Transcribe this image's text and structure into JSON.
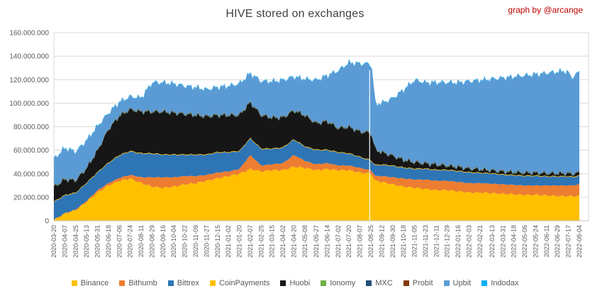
{
  "credit": "graph by @arcange",
  "colors": {
    "background": "#FFFFFF",
    "grid": "#D9D9D9",
    "axis_line": "#C6C6C6",
    "axis_text": "#595959",
    "title_text": "#404040",
    "credit_text": "#C00000",
    "gap_line": "#FFFFFF"
  },
  "chart_data": {
    "type": "area",
    "stacked": true,
    "title": "HIVE stored on exchanges",
    "xlabel": "",
    "ylabel": "",
    "grid": "horizontal",
    "legend_position": "bottom",
    "y_axis": {
      "min": 0,
      "max": 160000000,
      "step": 20000000,
      "tick_format": "dot-thousands"
    },
    "x_tick_labels": [
      "2020-03-20",
      "2020-04-07",
      "2020-04-25",
      "2020-05-13",
      "2020-05-31",
      "2020-06-18",
      "2020-07-06",
      "2020-07-24",
      "2020-08-11",
      "2020-08-29",
      "2020-09-16",
      "2020-10-04",
      "2020-10-22",
      "2020-11-09",
      "2020-11-27",
      "2020-12-15",
      "2021-01-02",
      "2021-01-20",
      "2021-02-07",
      "2021-02-25",
      "2021-03-15",
      "2021-04-02",
      "2021-04-20",
      "2021-05-08",
      "2021-05-27",
      "2021-06-14",
      "2021-07-02",
      "2021-07-20",
      "2021-08-07",
      "2021-08-25",
      "2021-09-12",
      "2021-09-30",
      "2021-10-18",
      "2021-11-05",
      "2021-11-23",
      "2021-12-11",
      "2021-12-29",
      "2022-01-16",
      "2022-02-03",
      "2022-02-21",
      "2022-03-13",
      "2022-03-31",
      "2022-04-18",
      "2022-05-06",
      "2022-05-24",
      "2022-06-11",
      "2022-06-29",
      "2022-07-17",
      "2022-08-04"
    ],
    "dates": [
      "2020-03-20",
      "2020-04-07",
      "2020-04-25",
      "2020-05-13",
      "2020-05-31",
      "2020-06-18",
      "2020-07-06",
      "2020-07-24",
      "2020-08-11",
      "2020-08-29",
      "2020-09-16",
      "2020-10-04",
      "2020-10-22",
      "2020-11-09",
      "2020-11-27",
      "2020-12-15",
      "2021-01-02",
      "2021-01-20",
      "2021-02-07",
      "2021-02-25",
      "2021-03-15",
      "2021-04-02",
      "2021-04-20",
      "2021-05-08",
      "2021-05-27",
      "2021-06-14",
      "2021-07-02",
      "2021-07-20",
      "2021-08-07",
      "2021-08-25",
      "2021-08-28",
      "2021-09-01",
      "2021-09-12",
      "2021-09-30",
      "2021-10-18",
      "2021-11-05",
      "2021-11-23",
      "2021-12-11",
      "2021-12-29",
      "2022-01-16",
      "2022-02-03",
      "2022-02-21",
      "2022-03-13",
      "2022-03-31",
      "2022-04-18",
      "2022-05-06",
      "2022-05-24",
      "2022-06-11",
      "2022-06-29",
      "2022-07-08",
      "2022-07-17",
      "2022-07-22",
      "2022-08-04"
    ],
    "values_unit": "millions of HIVE",
    "series": [
      {
        "name": "Binance",
        "color": "#FFC000",
        "jitter": 1.1,
        "values_millions": [
          0.5,
          6,
          9,
          16,
          24,
          30,
          34,
          36,
          32,
          29,
          28,
          29,
          31,
          32,
          34,
          36,
          38,
          40,
          44,
          42,
          43,
          43,
          46,
          45,
          43,
          44,
          43,
          43,
          41,
          40,
          38,
          34,
          33,
          31,
          29,
          28,
          27,
          26,
          26,
          25,
          24,
          24,
          23.5,
          23,
          22.5,
          22,
          22,
          21.5,
          21,
          21,
          21,
          21,
          21
        ]
      },
      {
        "name": "Bithumb",
        "color": "#ED7D31",
        "jitter": 0.7,
        "values_millions": [
          0.3,
          0.5,
          0.5,
          1,
          2,
          2,
          2.5,
          3,
          5,
          8,
          9,
          8,
          7,
          6,
          5,
          5,
          4,
          4,
          12,
          5,
          5,
          6,
          10,
          6,
          5,
          5,
          4,
          4,
          4,
          3,
          3.5,
          4,
          5,
          6,
          7,
          7,
          8,
          8,
          8,
          8,
          8,
          8,
          8,
          8,
          8,
          8,
          8,
          8.5,
          9,
          9,
          9,
          9,
          10
        ]
      },
      {
        "name": "Bittrex",
        "color": "#2E75B6",
        "jitter": 0.25,
        "values_millions": [
          15,
          15,
          14,
          15,
          15,
          17,
          19,
          20,
          20,
          20,
          19,
          19,
          18,
          18,
          17,
          17,
          16,
          15,
          14,
          14,
          13,
          13,
          13,
          12,
          12,
          11,
          11,
          10,
          9,
          8,
          8,
          9,
          9.5,
          9.5,
          9,
          9,
          9,
          9,
          9,
          9,
          9,
          8.5,
          8.5,
          8,
          8,
          8,
          8,
          7.5,
          7.5,
          7.5,
          7.5,
          7,
          7
        ]
      },
      {
        "name": "CoinPayments",
        "color": "#FFC000",
        "jitter": 0,
        "values_millions": [
          0.5,
          0.5,
          0.5,
          0.5,
          0.5,
          0.5,
          0.5,
          0.5,
          0.5,
          0.5,
          0.5,
          0.5,
          0.5,
          0.5,
          0.5,
          0.5,
          0.5,
          0.5,
          0.5,
          0.5,
          0.5,
          0.5,
          0.5,
          0.5,
          0.5,
          0.5,
          0.5,
          0.5,
          0.5,
          0.5,
          0.5,
          0.5,
          0.5,
          0.5,
          0.5,
          0.5,
          0.5,
          0.5,
          0.5,
          0.5,
          0.5,
          0.5,
          0.5,
          0.5,
          0.5,
          0.5,
          0.5,
          0.5,
          0.5,
          0.5,
          0.5,
          0.5,
          0.5
        ]
      },
      {
        "name": "Huobi",
        "color": "#161616",
        "jitter": 2.0,
        "values_millions": [
          12,
          13,
          10,
          12,
          18,
          28,
          33,
          35,
          35,
          35,
          36,
          35,
          34,
          33,
          32,
          31,
          31,
          30,
          30,
          28,
          26,
          25,
          24,
          26,
          22,
          24,
          20,
          22,
          21,
          23,
          20,
          13,
          10,
          8,
          6,
          5,
          4,
          4,
          3,
          3,
          2.5,
          2.5,
          2,
          2,
          2,
          2,
          2,
          2,
          2,
          2,
          2,
          2,
          2
        ]
      },
      {
        "name": "Ionomy",
        "color": "#70AD47",
        "jitter": 0,
        "values_millions": [
          0.3,
          0.3,
          0.3,
          0.3,
          0.3,
          0.3,
          0.3,
          0.3,
          0.3,
          0.3,
          0.3,
          0.3,
          0.3,
          0.3,
          0.3,
          0.3,
          0.3,
          0.3,
          0.3,
          0.3,
          0.3,
          0.3,
          0.3,
          0.3,
          0.3,
          0.3,
          0.3,
          0.3,
          0.3,
          0.3,
          0.3,
          0.3,
          0.3,
          0.3,
          0.3,
          0.3,
          0.3,
          0.3,
          0.3,
          0.3,
          0.3,
          0.3,
          0.3,
          0.3,
          0.3,
          0.3,
          0.3,
          0.3,
          0.3,
          0.3,
          0.3,
          0.3,
          0.3
        ]
      },
      {
        "name": "MXC",
        "color": "#1F4E79",
        "jitter": 0,
        "values_millions": [
          0.4,
          0.4,
          0.4,
          0.4,
          0.4,
          0.4,
          0.4,
          0.4,
          0.4,
          0.4,
          0.4,
          0.4,
          0.4,
          0.4,
          0.4,
          0.4,
          0.4,
          0.4,
          0.4,
          0.4,
          0.4,
          0.4,
          0.4,
          0.4,
          0.4,
          0.4,
          0.4,
          0.4,
          0.4,
          0.4,
          0.4,
          0.4,
          0.4,
          0.4,
          0.4,
          0.4,
          0.4,
          0.4,
          0.4,
          0.4,
          0.4,
          0.4,
          0.4,
          0.4,
          0.4,
          0.4,
          0.4,
          0.4,
          0.4,
          0.4,
          0.4,
          0.4,
          0.4
        ]
      },
      {
        "name": "Probit",
        "color": "#843C0C",
        "jitter": 0,
        "values_millions": [
          0.2,
          0.2,
          0.2,
          0.2,
          0.2,
          0.2,
          0.2,
          0.2,
          0.2,
          0.2,
          0.2,
          0.2,
          0.2,
          0.2,
          0.2,
          0.2,
          0.2,
          0.2,
          0.2,
          0.2,
          0.2,
          0.2,
          0.2,
          0.2,
          0.2,
          0.2,
          0.2,
          0.2,
          0.2,
          0.2,
          0.2,
          0.2,
          0.2,
          0.2,
          0.2,
          0.2,
          0.2,
          0.2,
          0.2,
          0.2,
          0.2,
          0.2,
          0.2,
          0.2,
          0.2,
          0.2,
          0.2,
          0.2,
          0.2,
          0.2,
          0.2,
          0.2,
          0.2
        ]
      },
      {
        "name": "Upbit",
        "color": "#5B9BD5",
        "jitter": 0.9,
        "values_millions": [
          23,
          26,
          23.5,
          23,
          20,
          13,
          11,
          10,
          11,
          24,
          24,
          24,
          23,
          23,
          22,
          23,
          24,
          26,
          24,
          28,
          30,
          31,
          28,
          30,
          36,
          38,
          48,
          54,
          57,
          58,
          55,
          38,
          41,
          48,
          59,
          69,
          68,
          69,
          70,
          71,
          73.5,
          75,
          77,
          79,
          80.5,
          82,
          83,
          84.5,
          85.5,
          86.5,
          85,
          81,
          85
        ]
      },
      {
        "name": "Indodax",
        "color": "#00B0F0",
        "jitter": 0,
        "values_millions": [
          0.4,
          0.4,
          0.4,
          0.4,
          0.4,
          0.4,
          0.4,
          0.4,
          0.4,
          0.4,
          0.4,
          0.4,
          0.4,
          0.4,
          0.4,
          0.4,
          0.4,
          0.4,
          0.4,
          0.4,
          0.4,
          0.4,
          0.4,
          0.4,
          0.4,
          0.4,
          0.4,
          0.4,
          0.4,
          0.4,
          0.4,
          0.4,
          0.4,
          0.4,
          0.4,
          0.4,
          0.4,
          0.4,
          0.4,
          0.4,
          0.4,
          0.4,
          0.4,
          0.4,
          0.4,
          0.4,
          0.4,
          0.4,
          0.4,
          0.4,
          0.4,
          0.4,
          0.4
        ]
      }
    ],
    "annotations": [
      {
        "type": "vertical-gap-line",
        "date": "2021-08-23",
        "color": "#FFFFFF"
      }
    ]
  }
}
